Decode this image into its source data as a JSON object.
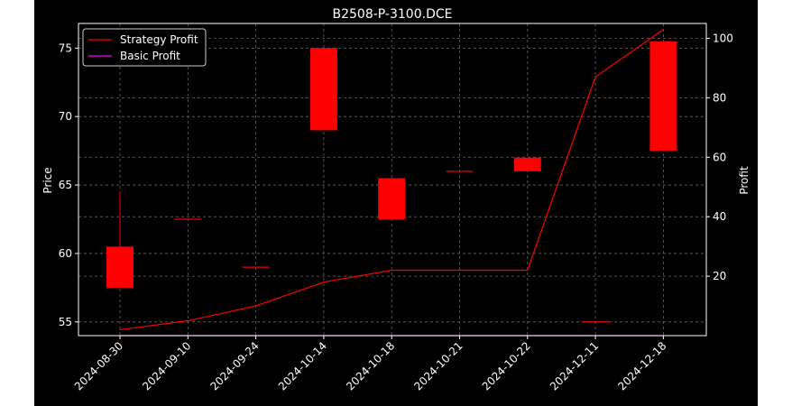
{
  "chart_data": {
    "type": "candlestick+line",
    "title": "B2508-P-3100.DCE",
    "xlabel": "",
    "ylabel": "Price",
    "ylabel_right": "Profit",
    "categories": [
      "2024-08-30",
      "2024-09-10",
      "2024-09-24",
      "2024-10-14",
      "2024-10-18",
      "2024-10-21",
      "2024-10-22",
      "2024-12-11",
      "2024-12-18"
    ],
    "ylim": [
      54.0,
      76.8
    ],
    "yticks": [
      55,
      60,
      65,
      70,
      75
    ],
    "ylim_right": [
      0,
      105
    ],
    "yticks_right": [
      20,
      40,
      60,
      80,
      100
    ],
    "grid": true,
    "legend_position": "upper-left",
    "candles": [
      {
        "date": "2024-08-30",
        "open": 60.5,
        "high": 64.5,
        "low": 57.5,
        "close": 57.5
      },
      {
        "date": "2024-09-10",
        "open": 62.5,
        "high": 62.5,
        "low": 62.5,
        "close": 62.5
      },
      {
        "date": "2024-09-24",
        "open": 59.0,
        "high": 59.0,
        "low": 59.0,
        "close": 59.0
      },
      {
        "date": "2024-10-14",
        "open": 75.0,
        "high": 75.0,
        "low": 69.0,
        "close": 69.0
      },
      {
        "date": "2024-10-18",
        "open": 65.5,
        "high": 65.5,
        "low": 62.5,
        "close": 62.5
      },
      {
        "date": "2024-10-21",
        "open": 66.0,
        "high": 66.0,
        "low": 66.0,
        "close": 66.0
      },
      {
        "date": "2024-10-22",
        "open": 67.0,
        "high": 67.0,
        "low": 66.0,
        "close": 66.0
      },
      {
        "date": "2024-12-11",
        "open": 55.0,
        "high": 55.0,
        "low": 55.0,
        "close": 55.0
      },
      {
        "date": "2024-12-18",
        "open": 75.5,
        "high": 75.5,
        "low": 67.5,
        "close": 67.5
      }
    ],
    "series": [
      {
        "name": "Strategy Profit",
        "axis": "right",
        "color": "#ff0000",
        "values": [
          2.0,
          5.0,
          10.0,
          18.0,
          22.0,
          22.0,
          22.0,
          87.0,
          103.0
        ]
      },
      {
        "name": "Basic Profit",
        "axis": "right",
        "color": "#ff00ff",
        "values": [
          0.0,
          0.0,
          0.0,
          0.0,
          0.0,
          0.0,
          0.0,
          0.0,
          0.0
        ]
      }
    ],
    "candle_color": "#ff0000",
    "background_color": "#000000",
    "text_color": "#ffffff",
    "grid_color": "#666666"
  }
}
